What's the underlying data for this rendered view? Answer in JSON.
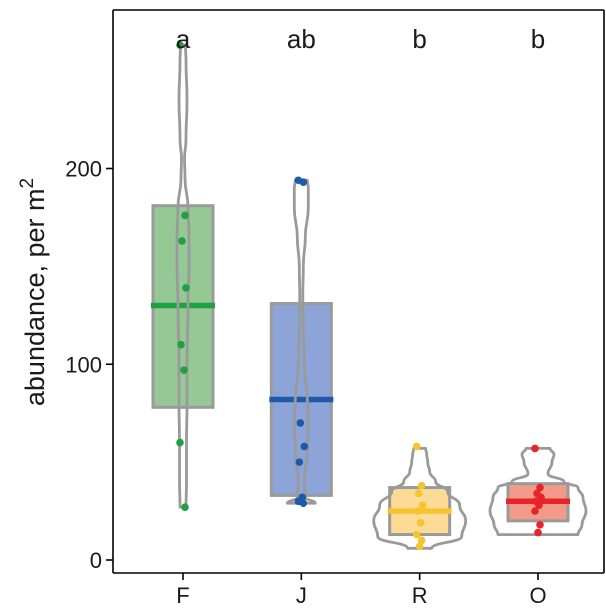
{
  "chart_data": {
    "type": "box",
    "ylabel_text": "abundance, per  m",
    "ylabel_superscript": "2",
    "yticks": [
      0,
      100,
      200
    ],
    "ylim": [
      -6,
      285
    ],
    "grid": false,
    "legend": "none",
    "categories": [
      "F",
      "J",
      "R",
      "O"
    ],
    "groups": [
      {
        "name": "F",
        "significance": "a",
        "fill": "#96c896",
        "color": "#1fa043",
        "box": {
          "q1": 78,
          "median": 130,
          "q3": 181
        },
        "points": [
          263,
          176,
          163,
          139,
          110,
          97,
          60,
          27
        ],
        "violin": [
          [
            27,
            3
          ],
          [
            40,
            3.5
          ],
          [
            60,
            3.5
          ],
          [
            80,
            4
          ],
          [
            100,
            4
          ],
          [
            130,
            5
          ],
          [
            150,
            6
          ],
          [
            165,
            6
          ],
          [
            180,
            5
          ],
          [
            195,
            2
          ],
          [
            205,
            1.5
          ],
          [
            215,
            3
          ],
          [
            235,
            4
          ],
          [
            255,
            3
          ],
          [
            263,
            2.5
          ]
        ]
      },
      {
        "name": "J",
        "significance": "ab",
        "fill": "#8ca4d7",
        "color": "#1f5aa8",
        "box": {
          "q1": 33,
          "median": 82,
          "q3": 131
        },
        "points": [
          194,
          193,
          70,
          58,
          50,
          32,
          30,
          29
        ],
        "violin": [
          [
            29,
            14
          ],
          [
            32,
            4
          ],
          [
            40,
            3
          ],
          [
            55,
            6
          ],
          [
            70,
            7
          ],
          [
            82,
            6
          ],
          [
            100,
            3
          ],
          [
            120,
            2
          ],
          [
            135,
            1.5
          ],
          [
            150,
            2
          ],
          [
            165,
            4
          ],
          [
            180,
            7
          ],
          [
            190,
            7
          ],
          [
            194,
            6
          ]
        ]
      },
      {
        "name": "R",
        "significance": "b",
        "fill": "#fcdb97",
        "color": "#f7c42f",
        "box": {
          "q1": 13,
          "median": 25,
          "q3": 37
        },
        "points": [
          58,
          38,
          34,
          28,
          25,
          19,
          13,
          10,
          7
        ],
        "violin": [
          [
            6,
            12
          ],
          [
            12,
            42
          ],
          [
            20,
            46
          ],
          [
            28,
            40
          ],
          [
            35,
            28
          ],
          [
            40,
            16
          ],
          [
            45,
            10
          ],
          [
            50,
            8
          ],
          [
            54,
            7
          ],
          [
            57,
            6
          ]
        ]
      },
      {
        "name": "O",
        "significance": "b",
        "fill": "#f29b8b",
        "color": "#e8242a",
        "box": {
          "q1": 20,
          "median": 30,
          "q3": 39
        },
        "points": [
          57,
          37,
          34,
          32,
          30,
          28,
          25,
          18,
          14
        ],
        "violin": [
          [
            13,
            40
          ],
          [
            18,
            44
          ],
          [
            25,
            48
          ],
          [
            32,
            45
          ],
          [
            37,
            40
          ],
          [
            40,
            26
          ],
          [
            44,
            10
          ],
          [
            50,
            14
          ],
          [
            54,
            16
          ],
          [
            57,
            12
          ]
        ]
      }
    ]
  }
}
